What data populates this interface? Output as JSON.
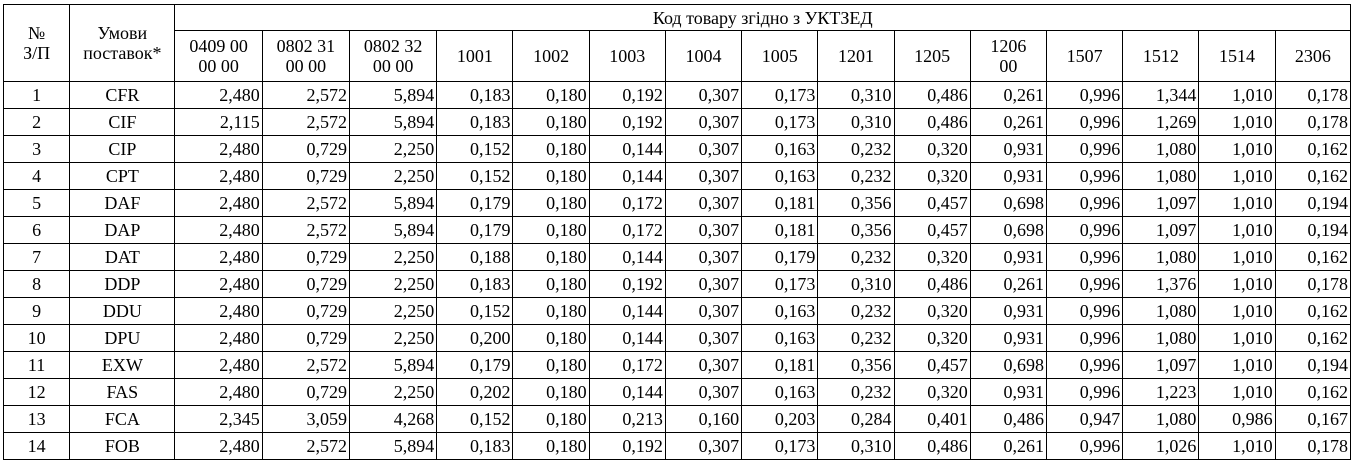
{
  "header": {
    "num_label_line1": "№",
    "num_label_line2": "З/П",
    "terms_label_line1": "Умови",
    "terms_label_line2": "поставок*",
    "group_label": "Код товару згідно з УКТЗЕД",
    "codes": [
      [
        "0409 00",
        "00 00"
      ],
      [
        "0802 31",
        "00 00"
      ],
      [
        "0802 32",
        "00 00"
      ],
      [
        "1001",
        ""
      ],
      [
        "1002",
        ""
      ],
      [
        "1003",
        ""
      ],
      [
        "1004",
        ""
      ],
      [
        "1005",
        ""
      ],
      [
        "1201",
        ""
      ],
      [
        "1205",
        ""
      ],
      [
        "1206",
        "00"
      ],
      [
        "1507",
        ""
      ],
      [
        "1512",
        ""
      ],
      [
        "1514",
        ""
      ],
      [
        "2306",
        ""
      ]
    ]
  },
  "rows": [
    {
      "n": "1",
      "term": "CFR",
      "values": [
        "2,480",
        "2,572",
        "5,894",
        "0,183",
        "0,180",
        "0,192",
        "0,307",
        "0,173",
        "0,310",
        "0,486",
        "0,261",
        "0,996",
        "1,344",
        "1,010",
        "0,178"
      ]
    },
    {
      "n": "2",
      "term": "CIF",
      "values": [
        "2,115",
        "2,572",
        "5,894",
        "0,183",
        "0,180",
        "0,192",
        "0,307",
        "0,173",
        "0,310",
        "0,486",
        "0,261",
        "0,996",
        "1,269",
        "1,010",
        "0,178"
      ]
    },
    {
      "n": "3",
      "term": "CIP",
      "values": [
        "2,480",
        "0,729",
        "2,250",
        "0,152",
        "0,180",
        "0,144",
        "0,307",
        "0,163",
        "0,232",
        "0,320",
        "0,931",
        "0,996",
        "1,080",
        "1,010",
        "0,162"
      ]
    },
    {
      "n": "4",
      "term": "CPT",
      "values": [
        "2,480",
        "0,729",
        "2,250",
        "0,152",
        "0,180",
        "0,144",
        "0,307",
        "0,163",
        "0,232",
        "0,320",
        "0,931",
        "0,996",
        "1,080",
        "1,010",
        "0,162"
      ]
    },
    {
      "n": "5",
      "term": "DAF",
      "values": [
        "2,480",
        "2,572",
        "5,894",
        "0,179",
        "0,180",
        "0,172",
        "0,307",
        "0,181",
        "0,356",
        "0,457",
        "0,698",
        "0,996",
        "1,097",
        "1,010",
        "0,194"
      ]
    },
    {
      "n": "6",
      "term": "DAP",
      "values": [
        "2,480",
        "2,572",
        "5,894",
        "0,179",
        "0,180",
        "0,172",
        "0,307",
        "0,181",
        "0,356",
        "0,457",
        "0,698",
        "0,996",
        "1,097",
        "1,010",
        "0,194"
      ]
    },
    {
      "n": "7",
      "term": "DAT",
      "values": [
        "2,480",
        "0,729",
        "2,250",
        "0,188",
        "0,180",
        "0,144",
        "0,307",
        "0,179",
        "0,232",
        "0,320",
        "0,931",
        "0,996",
        "1,080",
        "1,010",
        "0,162"
      ]
    },
    {
      "n": "8",
      "term": "DDP",
      "values": [
        "2,480",
        "0,729",
        "2,250",
        "0,183",
        "0,180",
        "0,192",
        "0,307",
        "0,173",
        "0,310",
        "0,486",
        "0,261",
        "0,996",
        "1,376",
        "1,010",
        "0,178"
      ]
    },
    {
      "n": "9",
      "term": "DDU",
      "values": [
        "2,480",
        "0,729",
        "2,250",
        "0,152",
        "0,180",
        "0,144",
        "0,307",
        "0,163",
        "0,232",
        "0,320",
        "0,931",
        "0,996",
        "1,080",
        "1,010",
        "0,162"
      ]
    },
    {
      "n": "10",
      "term": "DPU",
      "values": [
        "2,480",
        "0,729",
        "2,250",
        "0,200",
        "0,180",
        "0,144",
        "0,307",
        "0,163",
        "0,232",
        "0,320",
        "0,931",
        "0,996",
        "1,080",
        "1,010",
        "0,162"
      ]
    },
    {
      "n": "11",
      "term": "EXW",
      "values": [
        "2,480",
        "2,572",
        "5,894",
        "0,179",
        "0,180",
        "0,172",
        "0,307",
        "0,181",
        "0,356",
        "0,457",
        "0,698",
        "0,996",
        "1,097",
        "1,010",
        "0,194"
      ]
    },
    {
      "n": "12",
      "term": "FAS",
      "values": [
        "2,480",
        "0,729",
        "2,250",
        "0,202",
        "0,180",
        "0,144",
        "0,307",
        "0,163",
        "0,232",
        "0,320",
        "0,931",
        "0,996",
        "1,223",
        "1,010",
        "0,162"
      ]
    },
    {
      "n": "13",
      "term": "FCA",
      "values": [
        "2,345",
        "3,059",
        "4,268",
        "0,152",
        "0,180",
        "0,213",
        "0,160",
        "0,203",
        "0,284",
        "0,401",
        "0,486",
        "0,947",
        "1,080",
        "0,986",
        "0,167"
      ]
    },
    {
      "n": "14",
      "term": "FOB",
      "values": [
        "2,480",
        "2,572",
        "5,894",
        "0,183",
        "0,180",
        "0,192",
        "0,307",
        "0,173",
        "0,310",
        "0,486",
        "0,261",
        "0,996",
        "1,026",
        "1,010",
        "0,178"
      ]
    }
  ]
}
